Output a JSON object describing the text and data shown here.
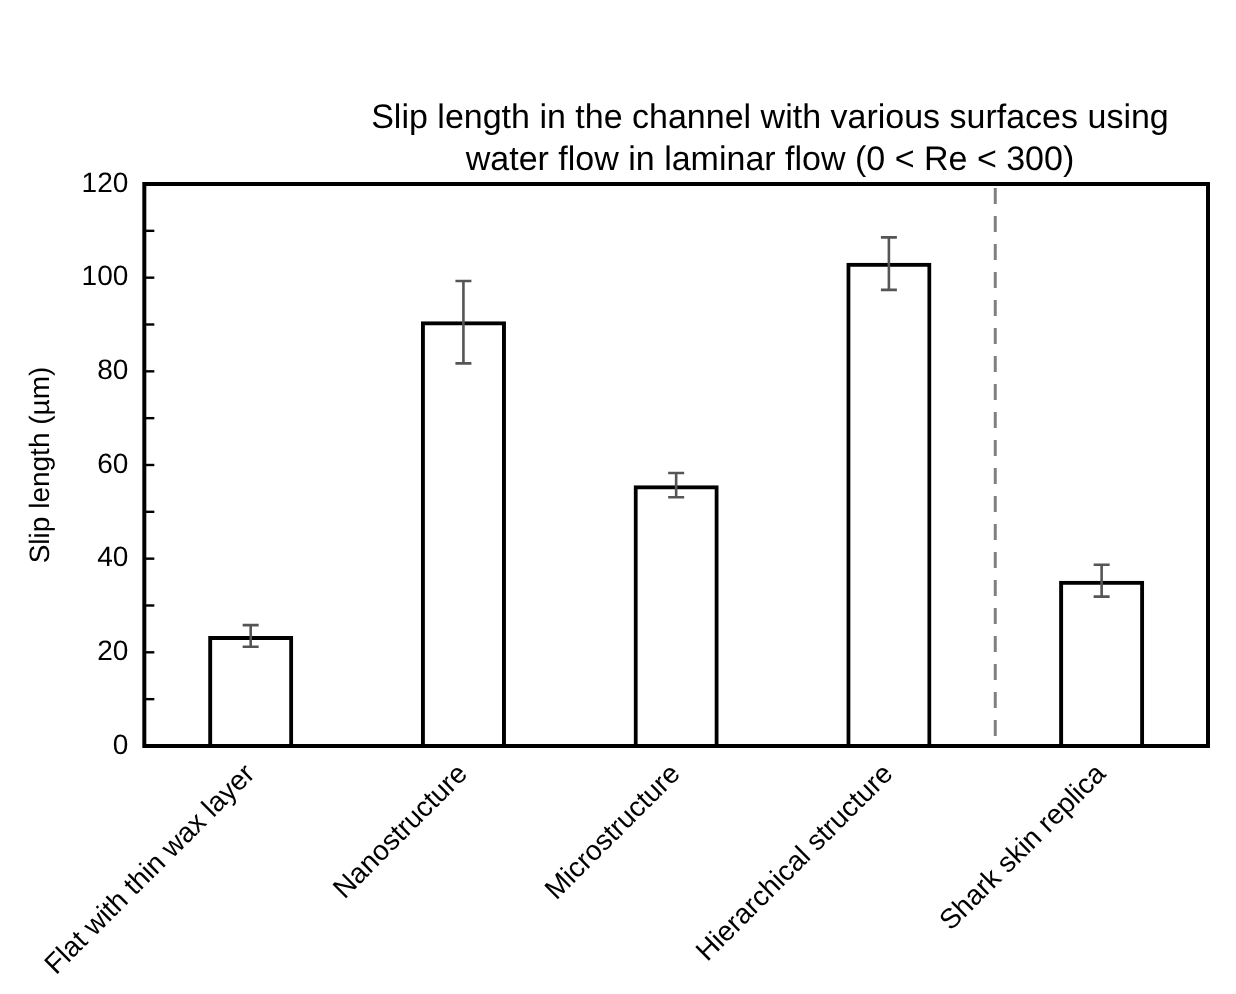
{
  "chart_data": {
    "type": "bar",
    "title": "Slip length in the channel with various surfaces using water flow in laminar flow (0 < Re < 300)",
    "ylabel": "Slip length (µm)",
    "categories": [
      "Flat with thin wax layer",
      "Nanostructure",
      "Microstructure",
      "Hierarchical structure",
      "Shark skin replica"
    ],
    "values": [
      23.5,
      90.7,
      55.7,
      103.2,
      35.3
    ],
    "errors": [
      2.3,
      [
        81.7,
        99.3
      ],
      2.6,
      [
        97.4,
        108.6
      ],
      3.4
    ],
    "color": "#000000",
    "ylim": [
      0,
      120
    ],
    "yticks": [
      0,
      {
        "value": 10,
        "label": null
      },
      20,
      {
        "value": 30,
        "label": null
      },
      40,
      {
        "value": 50,
        "label": null
      },
      60,
      {
        "value": 70,
        "label": null
      },
      80,
      {
        "value": 90,
        "label": null
      },
      100,
      {
        "value": 110,
        "label": null
      },
      120
    ],
    "grid": false,
    "legend": false
  }
}
